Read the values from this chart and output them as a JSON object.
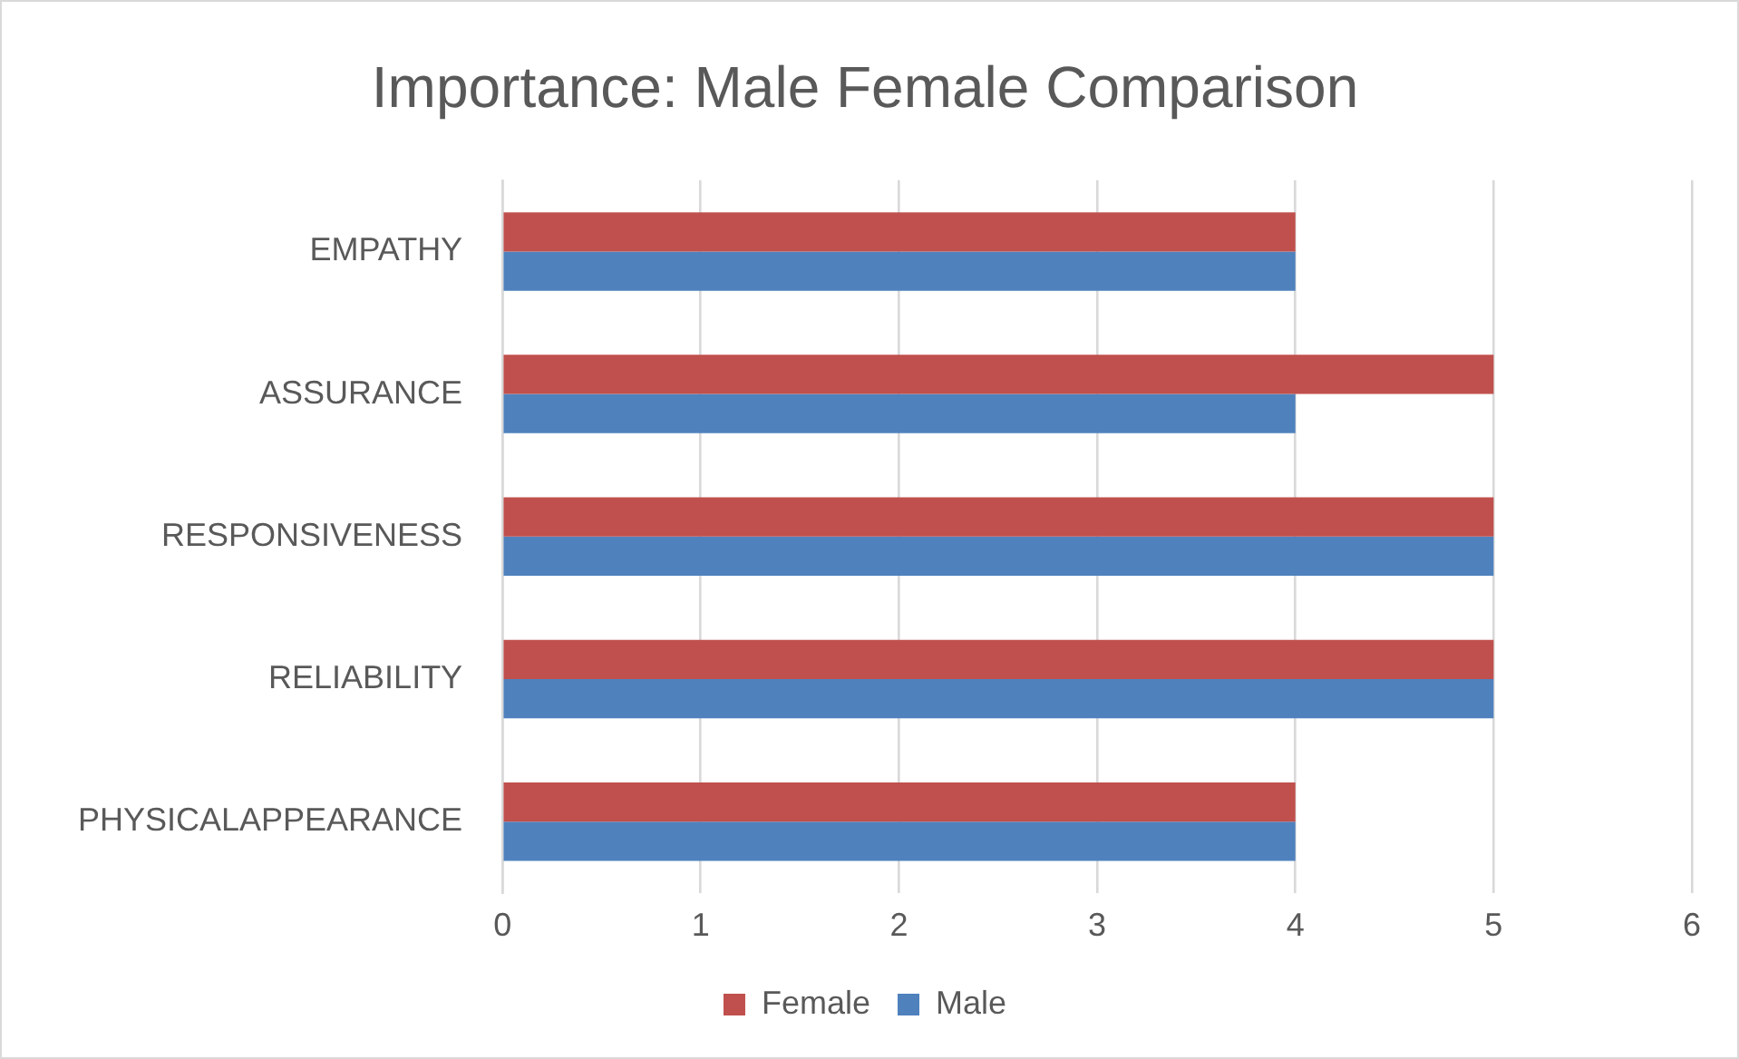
{
  "chart_data": {
    "type": "bar",
    "orientation": "horizontal",
    "title": "Importance: Male Female Comparison",
    "categories": [
      "EMPATHY",
      "ASSURANCE",
      "RESPONSIVENESS",
      "RELIABILITY",
      "PHYSICALAPPEARANCE"
    ],
    "series": [
      {
        "name": "Female",
        "color": "#c0504d",
        "values": [
          4,
          5,
          5,
          5,
          4
        ]
      },
      {
        "name": "Male",
        "color": "#4f81bd",
        "values": [
          4,
          4,
          5,
          5,
          4
        ]
      }
    ],
    "xlim": [
      0,
      6
    ],
    "xticks": [
      0,
      1,
      2,
      3,
      4,
      5,
      6
    ],
    "grid": "x",
    "legend": "bottom"
  }
}
